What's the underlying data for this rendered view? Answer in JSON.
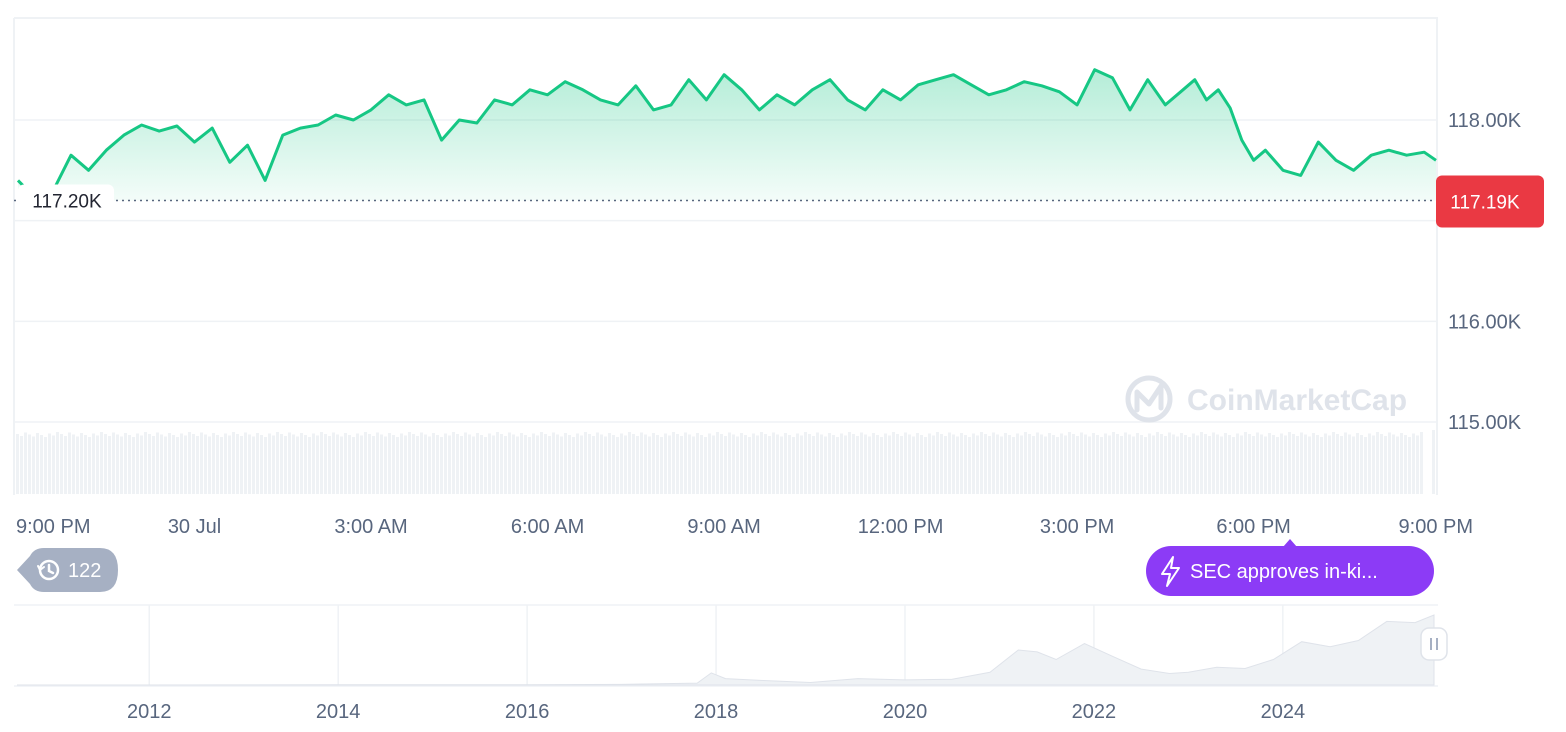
{
  "chart_data": [
    {
      "type": "area",
      "title": "",
      "xlabel": "",
      "ylabel": "",
      "x_tick_labels": [
        "9:00 PM",
        "30 Jul",
        "3:00 AM",
        "6:00 AM",
        "9:00 AM",
        "12:00 PM",
        "3:00 PM",
        "6:00 PM",
        "9:00 PM"
      ],
      "x_ticks_hours": [
        0,
        3,
        6,
        9,
        12,
        15,
        18,
        21,
        24
      ],
      "y_tick_labels": [
        "118.00K",
        "117.00K",
        "116.00K",
        "115.00K"
      ],
      "y_ticks": [
        118000,
        117000,
        116000,
        115000
      ],
      "ylim": [
        115000,
        119000
      ],
      "xlim_hours": [
        0,
        24.1
      ],
      "baseline": 117200,
      "baseline_label": "117.20K",
      "current_price": 117190,
      "current_price_label": "117.19K",
      "colors": {
        "up": "#16c784",
        "down": "#ea3943",
        "volume": "#eff2f5",
        "event": "#8c3bf6",
        "history_badge": "#a6b0c3"
      },
      "series": [
        {
          "x_hours": [
            0,
            0.3,
            0.6,
            0.9,
            1.2,
            1.5,
            1.8,
            2.1,
            2.4,
            2.7,
            3.0,
            3.3,
            3.6,
            3.9,
            4.2,
            4.5,
            4.8,
            5.1,
            5.4,
            5.7,
            6.0,
            6.3,
            6.6,
            6.9,
            7.2,
            7.5,
            7.8,
            8.1,
            8.4,
            8.7,
            9.0,
            9.3,
            9.6,
            9.9,
            10.2,
            10.5,
            10.8,
            11.1,
            11.4,
            11.7,
            12.0,
            12.3,
            12.6,
            12.9,
            13.2,
            13.5,
            13.8,
            14.1,
            14.4,
            14.7,
            15.0,
            15.3,
            15.6,
            15.9,
            16.2,
            16.5,
            16.8,
            17.1,
            17.4,
            17.7,
            18.0,
            18.3,
            18.6,
            18.9,
            19.2,
            19.5,
            19.8,
            20.0,
            20.2,
            20.4,
            20.6,
            20.8,
            21.0,
            21.2,
            21.5,
            21.8,
            22.1,
            22.4,
            22.7,
            23.0,
            23.3,
            23.6,
            23.9,
            24.1
          ],
          "values": [
            117400,
            117220,
            117300,
            117650,
            117500,
            117700,
            117850,
            117950,
            117890,
            117940,
            117780,
            117920,
            117580,
            117750,
            117400,
            117850,
            117920,
            117950,
            118050,
            118000,
            118100,
            118250,
            118150,
            118200,
            117800,
            118000,
            117970,
            118200,
            118150,
            118300,
            118250,
            118380,
            118300,
            118200,
            118150,
            118340,
            118100,
            118150,
            118400,
            118200,
            118450,
            118300,
            118100,
            118250,
            118150,
            118300,
            118400,
            118200,
            118100,
            118300,
            118200,
            118350,
            118400,
            118450,
            118350,
            118250,
            118300,
            118380,
            118340,
            118280,
            118150,
            118500,
            118420,
            118100,
            118400,
            118150,
            118300,
            118400,
            118200,
            118300,
            118120,
            117800,
            117600,
            117700,
            117500,
            117450,
            117780,
            117600,
            117500,
            117650,
            117700,
            117650,
            117680,
            117600
          ],
          "color": "#16c784"
        }
      ]
    },
    {
      "type": "area",
      "title": "",
      "x_tick_labels": [
        "2012",
        "2014",
        "2016",
        "2018",
        "2020",
        "2022",
        "2024"
      ],
      "x_ticks": [
        2012,
        2014,
        2016,
        2018,
        2020,
        2022,
        2024
      ],
      "xlim": [
        2010.6,
        2025.6
      ],
      "series": [
        {
          "x": [
            2010.6,
            2012.0,
            2013.0,
            2014.0,
            2015.0,
            2016.0,
            2017.0,
            2017.8,
            2017.95,
            2018.1,
            2018.5,
            2019.0,
            2019.5,
            2020.0,
            2020.5,
            2020.9,
            2021.2,
            2021.4,
            2021.6,
            2021.9,
            2022.2,
            2022.5,
            2022.8,
            2023.0,
            2023.3,
            2023.6,
            2023.9,
            2024.2,
            2024.5,
            2024.8,
            2025.1,
            2025.4,
            2025.6
          ],
          "values": [
            0,
            0,
            0.2,
            0.5,
            0.3,
            0.5,
            1.0,
            3.0,
            19.0,
            10.0,
            7.0,
            4.0,
            10.0,
            8.0,
            9.0,
            20.0,
            55.0,
            52.0,
            40.0,
            65.0,
            45.0,
            25.0,
            18.0,
            20.0,
            28.0,
            26.0,
            40.0,
            68.0,
            60.0,
            70.0,
            100.0,
            98.0,
            110.0
          ],
          "color": "#eff2f5"
        }
      ]
    }
  ],
  "watermark": {
    "text": "CoinMarketCap",
    "icon": "coinmarketcap-logo-icon"
  },
  "history_badge": {
    "icon": "history-clock-icon",
    "count": "122"
  },
  "event_pill": {
    "icon": "lightning-icon",
    "text": "SEC approves in-ki..."
  },
  "navigator_handle": {
    "icon": "drag-handle-icon"
  }
}
